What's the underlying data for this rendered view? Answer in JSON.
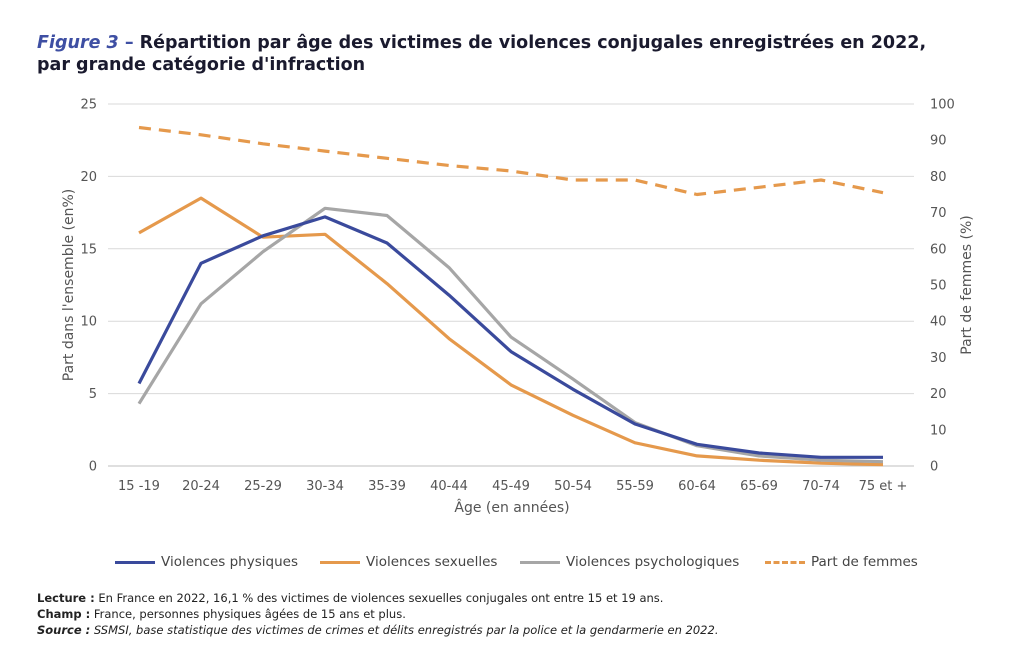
{
  "title": {
    "figure_label": "Figure 3",
    "dash": "–",
    "line1": "Répartition par âge des victimes de violences conjugales enregistrées en 2022,",
    "line2": "par grande catégorie d'infraction"
  },
  "chart_data": {
    "type": "line",
    "categories": [
      "15 -19",
      "20-24",
      "25-29",
      "30-34",
      "35-39",
      "40-44",
      "45-49",
      "50-54",
      "55-59",
      "60-64",
      "65-69",
      "70-74",
      "75 et +"
    ],
    "xlabel": "Âge (en années)",
    "ylabel": "Part dans l'ensemble (en%)",
    "ylabel_right": "Part de femmes (%)",
    "ylim": [
      0,
      25
    ],
    "ylim_right": [
      0,
      100
    ],
    "yticks": [
      0,
      5,
      10,
      15,
      20,
      25
    ],
    "yticks_right": [
      0,
      10,
      20,
      30,
      40,
      50,
      60,
      70,
      80,
      90,
      100
    ],
    "grid": true,
    "legend_position": "bottom",
    "series": [
      {
        "name": "Violences physiques",
        "axis": "left",
        "color": "#3a4a9c",
        "style": "solid",
        "values": [
          5.7,
          14.0,
          15.9,
          17.2,
          15.4,
          11.8,
          7.9,
          5.3,
          2.9,
          1.5,
          0.9,
          0.6,
          0.6
        ]
      },
      {
        "name": "Violences sexuelles",
        "axis": "left",
        "color": "#e5994c",
        "style": "solid",
        "values": [
          16.1,
          18.5,
          15.8,
          16.0,
          12.6,
          8.8,
          5.6,
          3.5,
          1.6,
          0.7,
          0.4,
          0.2,
          0.1
        ]
      },
      {
        "name": "Violences psychologiques",
        "axis": "left",
        "color": "#a6a6a6",
        "style": "solid",
        "values": [
          4.3,
          11.2,
          14.8,
          17.8,
          17.3,
          13.7,
          8.9,
          6.0,
          3.0,
          1.4,
          0.7,
          0.4,
          0.3
        ]
      },
      {
        "name": "Part de femmes",
        "axis": "right",
        "color": "#e5994c",
        "style": "dashed",
        "values": [
          93.5,
          91.5,
          89.0,
          87.0,
          85.0,
          83.0,
          81.5,
          79.0,
          79.0,
          75.0,
          77.0,
          79.0,
          75.5
        ]
      }
    ]
  },
  "notes": {
    "lecture_label": "Lecture :",
    "lecture_text": " En France en 2022, 16,1 % des victimes de violences sexuelles conjugales ont entre 15 et 19 ans.",
    "champ_label": "Champ :",
    "champ_text": " France, personnes physiques âgées de 15 ans et plus.",
    "source_label": "Source :",
    "source_text": " SSMSI, base statistique des victimes de crimes et délits enregistrés par la police et la gendarmerie en 2022."
  }
}
